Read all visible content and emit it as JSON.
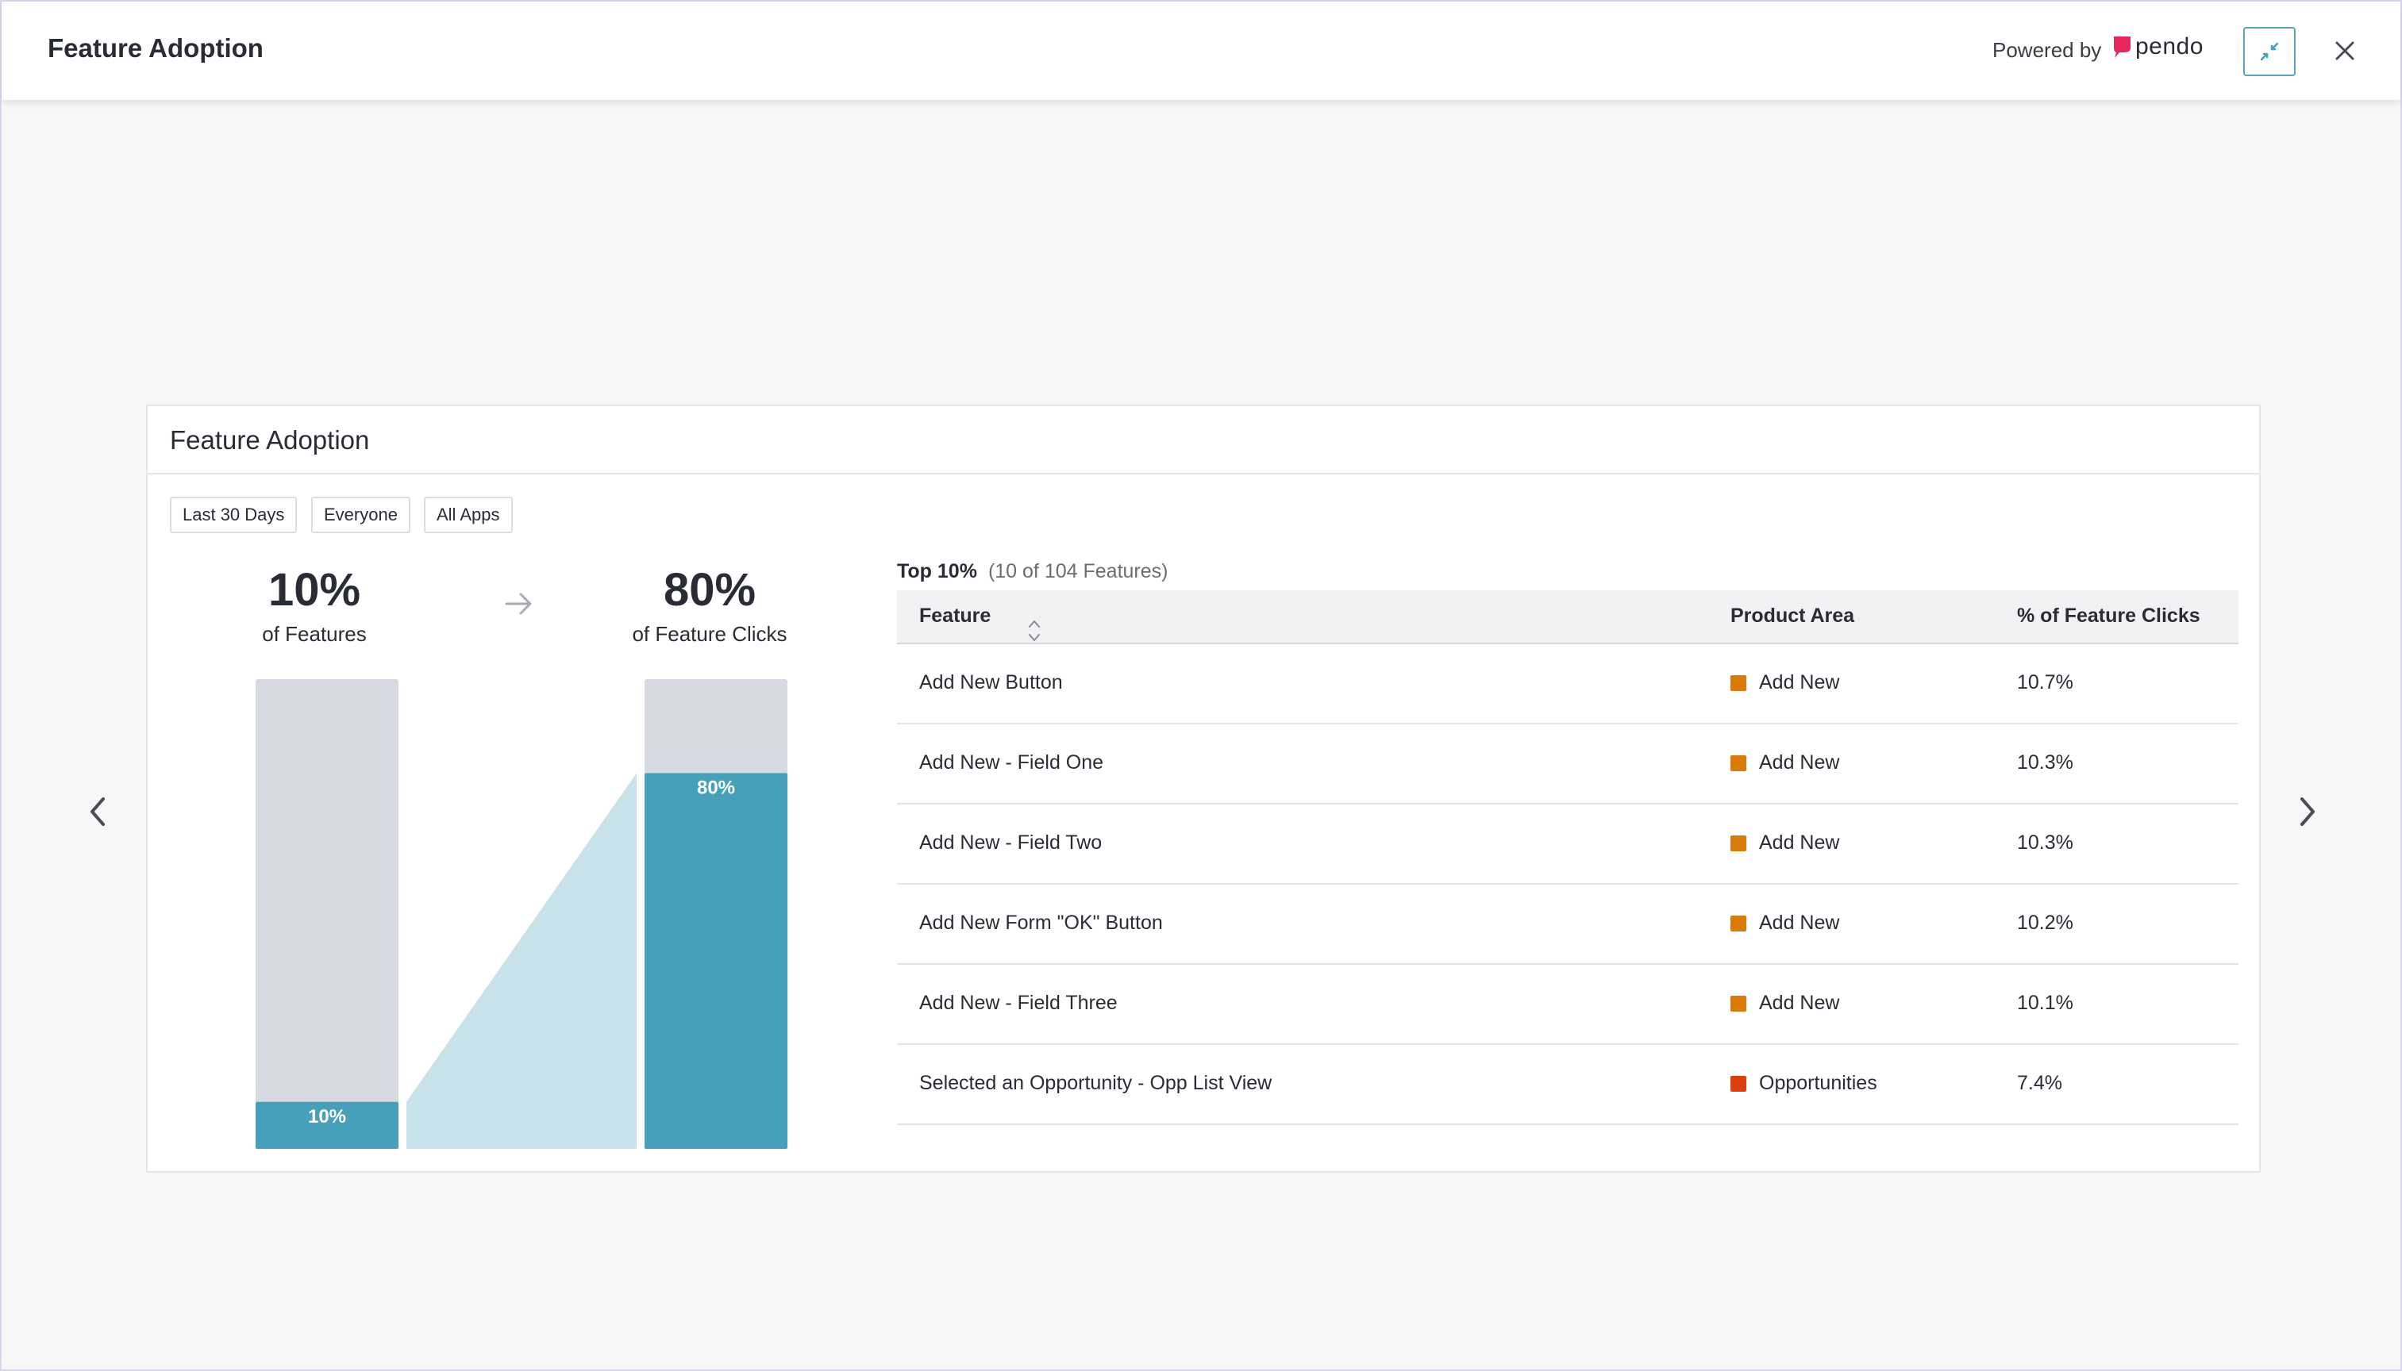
{
  "header": {
    "title": "Feature Adoption",
    "powered_by": "Powered by",
    "brand": "pendo"
  },
  "card": {
    "title": "Feature Adoption",
    "filters": [
      "Last 30 Days",
      "Everyone",
      "All Apps"
    ]
  },
  "stats": {
    "features_pct": "10%",
    "features_label": "of Features",
    "clicks_pct": "80%",
    "clicks_label": "of Feature Clicks"
  },
  "chart_data": {
    "type": "bar",
    "categories": [
      "of Features",
      "of Feature Clicks"
    ],
    "values": [
      10,
      80
    ],
    "bar_labels": [
      "10%",
      "80%"
    ],
    "ylim": [
      0,
      100
    ],
    "colors": {
      "filled": "#46a0b9",
      "remainder": "#d8dae2",
      "connector": "#c8e2e9"
    }
  },
  "table": {
    "top_label": "Top 10%",
    "count_label": "(10 of 104 Features)",
    "columns": [
      "Feature",
      "Product Area",
      "% of Feature Clicks"
    ],
    "rows": [
      {
        "feature": "Add New Button",
        "area": "Add New",
        "area_color": "#d97a0b",
        "pct": "10.7%"
      },
      {
        "feature": "Add New - Field One",
        "area": "Add New",
        "area_color": "#d97a0b",
        "pct": "10.3%"
      },
      {
        "feature": "Add New - Field Two",
        "area": "Add New",
        "area_color": "#d97a0b",
        "pct": "10.3%"
      },
      {
        "feature": "Add New Form \"OK\" Button",
        "area": "Add New",
        "area_color": "#d97a0b",
        "pct": "10.2%"
      },
      {
        "feature": "Add New - Field Three",
        "area": "Add New",
        "area_color": "#d97a0b",
        "pct": "10.1%"
      },
      {
        "feature": "Selected an Opportunity - Opp List View",
        "area": "Opportunities",
        "area_color": "#d9400b",
        "pct": "7.4%"
      }
    ]
  },
  "colors": {
    "accent": "#46a0b9",
    "brand_pink": "#e8265e"
  }
}
